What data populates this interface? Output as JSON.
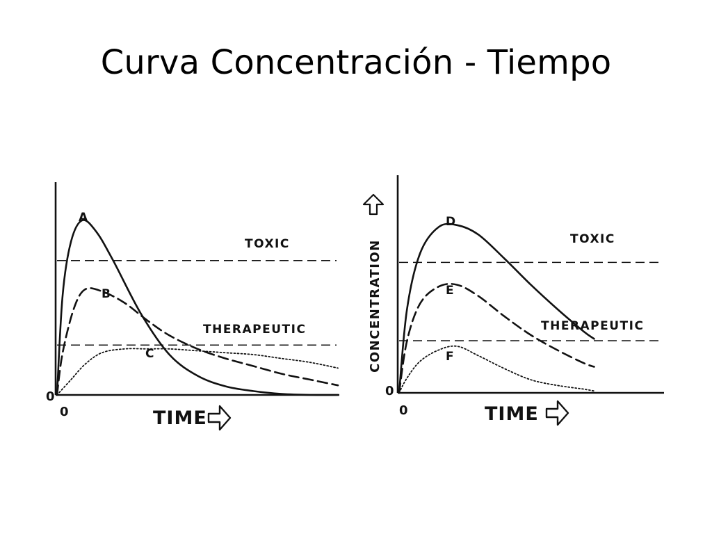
{
  "slide": {
    "title": "Curva Concentración - Tiempo"
  },
  "colors": {
    "ink": "#111111",
    "background": "#ffffff"
  },
  "chart_data": [
    {
      "type": "line",
      "xlabel": "TIME",
      "ylabel": "",
      "origin_label": "0",
      "y_origin_label": "0",
      "x_arrow_icon": "right-arrow-icon",
      "xlim": [
        0,
        10
      ],
      "ylim": [
        0,
        10
      ],
      "grid": false,
      "reference_lines": [
        {
          "label": "TOXIC",
          "y": 7.0,
          "style": "dashed"
        },
        {
          "label": "THERAPEUTIC",
          "y": 2.6,
          "style": "dashed"
        }
      ],
      "series": [
        {
          "name": "A",
          "style": "solid",
          "x": [
            0,
            0.2,
            0.5,
            0.9,
            1.4,
            2.0,
            3.0,
            4.0,
            5.0,
            6.0,
            7.0,
            8.0,
            9.0,
            10.0
          ],
          "values": [
            0,
            5.2,
            8.0,
            9.1,
            8.5,
            7.0,
            4.2,
            2.1,
            1.0,
            0.45,
            0.2,
            0.05,
            0,
            0
          ]
        },
        {
          "name": "B",
          "style": "dashed",
          "x": [
            0,
            0.2,
            0.6,
            1.0,
            1.6,
            2.4,
            3.2,
            4.0,
            5.0,
            6.0,
            7.0,
            8.0,
            9.0,
            10.0
          ],
          "values": [
            0,
            2.2,
            4.5,
            5.5,
            5.4,
            4.8,
            3.9,
            3.1,
            2.4,
            1.9,
            1.5,
            1.1,
            0.8,
            0.5
          ]
        },
        {
          "name": "C",
          "style": "dotted",
          "x": [
            0,
            0.5,
            1.0,
            1.6,
            2.4,
            3.2,
            4.0,
            5.0,
            6.0,
            7.0,
            8.0,
            9.0,
            10.0
          ],
          "values": [
            0,
            0.8,
            1.6,
            2.2,
            2.4,
            2.4,
            2.4,
            2.3,
            2.2,
            2.1,
            1.9,
            1.7,
            1.4
          ]
        }
      ]
    },
    {
      "type": "line",
      "xlabel": "TIME",
      "ylabel": "CONCENTRATION",
      "origin_label": "0",
      "y_origin_label": "0",
      "x_arrow_icon": "right-arrow-icon",
      "y_arrow_icon": "up-arrow-icon",
      "xlim": [
        0,
        10
      ],
      "ylim": [
        0,
        10
      ],
      "grid": false,
      "reference_lines": [
        {
          "label": "TOXIC",
          "y": 7.0,
          "style": "dashed"
        },
        {
          "label": "THERAPEUTIC",
          "y": 2.8,
          "style": "dashed"
        }
      ],
      "series": [
        {
          "name": "D",
          "style": "solid",
          "x": [
            0,
            0.3,
            0.8,
            1.5,
            2.2,
            3.0,
            4.0,
            5.0,
            6.0,
            7.0,
            7.4
          ],
          "values": [
            0,
            4.5,
            7.5,
            8.9,
            9.0,
            8.5,
            7.2,
            5.8,
            4.5,
            3.3,
            2.9
          ]
        },
        {
          "name": "E",
          "style": "dashed",
          "x": [
            0,
            0.3,
            0.8,
            1.5,
            2.2,
            3.0,
            4.0,
            5.0,
            6.0,
            7.0,
            7.4
          ],
          "values": [
            0,
            2.8,
            4.8,
            5.7,
            5.8,
            5.2,
            4.1,
            3.1,
            2.3,
            1.6,
            1.4
          ]
        },
        {
          "name": "F",
          "style": "dotted",
          "x": [
            0,
            0.3,
            0.8,
            1.5,
            2.2,
            3.0,
            4.0,
            5.0,
            6.0,
            7.0,
            7.4
          ],
          "values": [
            0,
            0.8,
            1.7,
            2.3,
            2.5,
            2.0,
            1.3,
            0.7,
            0.4,
            0.2,
            0.1
          ]
        }
      ]
    }
  ]
}
